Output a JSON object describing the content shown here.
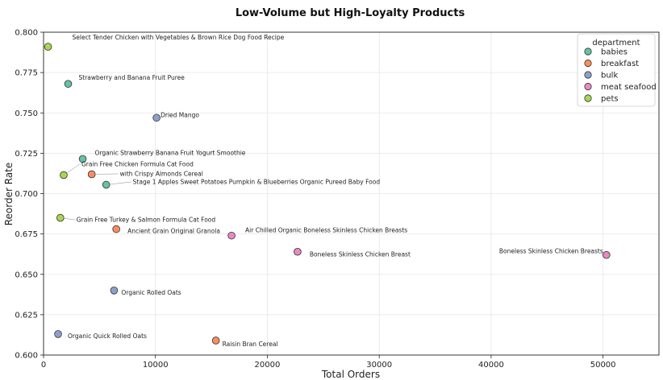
{
  "chart_data": {
    "type": "scatter",
    "title": "Low-Volume but High-Loyalty Products",
    "xlabel": "Total Orders",
    "ylabel": "Reorder Rate",
    "xlim": [
      0,
      55000
    ],
    "ylim": [
      0.6,
      0.8
    ],
    "xticks": [
      0,
      10000,
      20000,
      30000,
      40000,
      50000
    ],
    "yticks": [
      0.6,
      0.625,
      0.65,
      0.675,
      0.7,
      0.725,
      0.75,
      0.775,
      0.8
    ],
    "ytick_labels": [
      "0.600",
      "0.625",
      "0.650",
      "0.675",
      "0.700",
      "0.725",
      "0.750",
      "0.775",
      "0.800"
    ],
    "grid": true,
    "legend": {
      "title": "department",
      "placement": "top-right",
      "entries": [
        {
          "name": "babies",
          "color": "#66c2a5"
        },
        {
          "name": "breakfast",
          "color": "#fc8d62"
        },
        {
          "name": "bulk",
          "color": "#8da0cb"
        },
        {
          "name": "meat seafood",
          "color": "#e78ac3"
        },
        {
          "name": "pets",
          "color": "#a6d854"
        }
      ]
    },
    "points": [
      {
        "label": "Select Tender Chicken with Vegetables & Brown Rice Dog Food Recipe",
        "department": "pets",
        "x": 400,
        "y": 0.791
      },
      {
        "label": "Strawberry and Banana Fruit Puree",
        "department": "babies",
        "x": 2200,
        "y": 0.768
      },
      {
        "label": "Dried Mango",
        "department": "bulk",
        "x": 10100,
        "y": 0.747
      },
      {
        "label": "Organic Strawberry Banana Fruit Yogurt Smoothie",
        "department": "babies",
        "x": 3500,
        "y": 0.7215
      },
      {
        "label": "Grain Free Chicken Formula Cat Food",
        "department": "pets",
        "x": 1800,
        "y": 0.7115
      },
      {
        "label": "with Crispy Almonds Cereal",
        "department": "breakfast",
        "x": 4300,
        "y": 0.712
      },
      {
        "label": "Stage 1 Apples Sweet Potatoes Pumpkin & Blueberries Organic Pureed Baby Food",
        "department": "babies",
        "x": 5600,
        "y": 0.7055
      },
      {
        "label": "Grain Free Turkey & Salmon Formula Cat Food",
        "department": "pets",
        "x": 1500,
        "y": 0.685
      },
      {
        "label": "Ancient Grain Original Granola",
        "department": "breakfast",
        "x": 6500,
        "y": 0.678
      },
      {
        "label": "Air Chilled Organic Boneless Skinless Chicken Breasts",
        "department": "meat seafood",
        "x": 16800,
        "y": 0.674
      },
      {
        "label": "Boneless Skinless Chicken Breast",
        "department": "meat seafood",
        "x": 22700,
        "y": 0.664
      },
      {
        "label": "Boneless Skinless Chicken Breasts",
        "department": "meat seafood",
        "x": 50300,
        "y": 0.662
      },
      {
        "label": "Organic Rolled Oats",
        "department": "bulk",
        "x": 6300,
        "y": 0.64
      },
      {
        "label": "Organic Quick Rolled Oats",
        "department": "bulk",
        "x": 1300,
        "y": 0.613
      },
      {
        "label": "Raisin Bran Cereal",
        "department": "breakfast",
        "x": 15400,
        "y": 0.609
      }
    ]
  }
}
